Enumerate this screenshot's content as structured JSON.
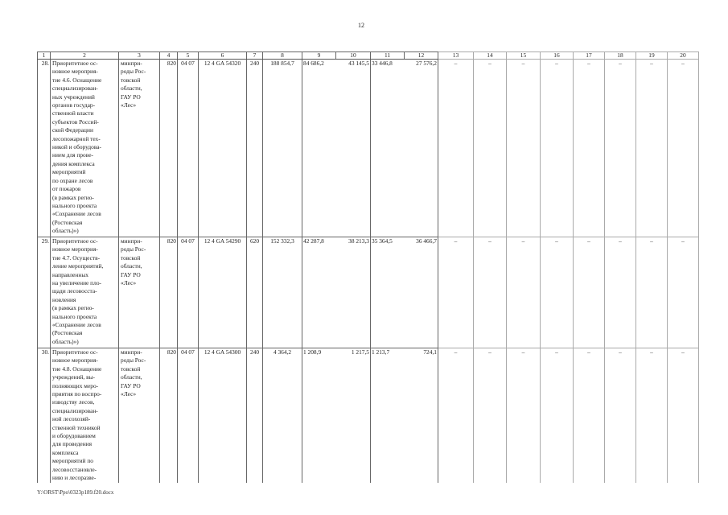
{
  "page_number": "12",
  "footer_path": "Y:\\ORST\\Ppo\\0323p189.f20.docx",
  "table": {
    "headers": [
      "1",
      "2",
      "3",
      "4",
      "5",
      "6",
      "7",
      "8",
      "9",
      "10",
      "11",
      "12",
      "13",
      "14",
      "15",
      "16",
      "17",
      "18",
      "19",
      "20"
    ],
    "rows": [
      {
        "num": "28.",
        "name": "Приоритетное ос-\nновное мероприя-\nтие 4.6. Оснащение\nспециализирован-\nных учреждений\nорганов государ-\nственной власти\nсубъектов Россий-\nской Федерации\nлесопожарной тех-\nникой и оборудова-\nнием для прове-\nдения комплекса\nмероприятий\nпо охране лесов\nот пожаров\n(в рамках регио-\nнального проекта\n«Сохранение лесов\n(Ростовская\nобласть)»)",
        "executor": "минпри-\nроды Рос-\nтовской\nобласти,\nГАУ РО\n«Лес»",
        "c4": "820",
        "c5": "04 07",
        "c6": "12 4 GA 54320",
        "c7": "240",
        "c8": "188 854,7",
        "c9": "84 686,2",
        "c10": "43 145,5",
        "c11": "33 446,8",
        "c12": "27 576,2",
        "c13": "–",
        "c14": "–",
        "c15": "–",
        "c16": "–",
        "c17": "–",
        "c18": "–",
        "c19": "–",
        "c20": "–"
      },
      {
        "num": "29.",
        "name": "Приоритетное ос-\nновное мероприя-\nтие 4.7. Осуществ-\nление мероприятий,\nнаправленных\nна увеличение пло-\nщади лесовосста-\nновления\n(в рамках регио-\nнального проекта\n«Сохранение лесов\n(Ростовская\nобласть)»)",
        "executor": "минпри-\nроды Рос-\nтовской\nобласти,\nГАУ РО\n«Лес»",
        "c4": "820",
        "c5": "04 07",
        "c6": "12 4 GA 54290",
        "c7": "620",
        "c8": "152 332,3",
        "c9": "42 287,8",
        "c10": "38 213,3",
        "c11": "35 364,5",
        "c12": "36 466,7",
        "c13": "–",
        "c14": "–",
        "c15": "–",
        "c16": "–",
        "c17": "–",
        "c18": "–",
        "c19": "–",
        "c20": "–"
      },
      {
        "num": "30.",
        "name": "Приоритетное ос-\nновное мероприя-\nтие 4.8. Оснащение\nучреждений, вы-\nполняющих меро-\nприятия по воспро-\nизводству лесов,\nспециализирован-\nной лесохозяй-\nственной техникой\nи оборудованием\nдля проведения\nкомплекса\nмероприятий по\nлесовосстановле-\nнию и лесоразве-",
        "executor": "минпри-\nроды Рос-\nтовской\nобласти,\nГАУ РО\n«Лес»",
        "c4": "820",
        "c5": "04 07",
        "c6": "12 4 GA 54300",
        "c7": "240",
        "c8": "4 364,2",
        "c9": "1 208,9",
        "c10": "1 217,5",
        "c11": "1 213,7",
        "c12": "724,1",
        "c13": "–",
        "c14": "–",
        "c15": "–",
        "c16": "–",
        "c17": "–",
        "c18": "–",
        "c19": "–",
        "c20": "–"
      }
    ]
  }
}
